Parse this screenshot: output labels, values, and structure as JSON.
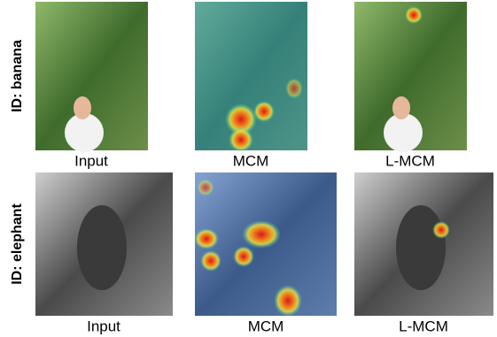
{
  "rows": [
    {
      "label": "ID: banana",
      "captions": [
        "Input",
        "MCM",
        "L-MCM"
      ]
    },
    {
      "label": "ID: elephant",
      "captions": [
        "Input",
        "MCM",
        "L-MCM"
      ]
    }
  ]
}
